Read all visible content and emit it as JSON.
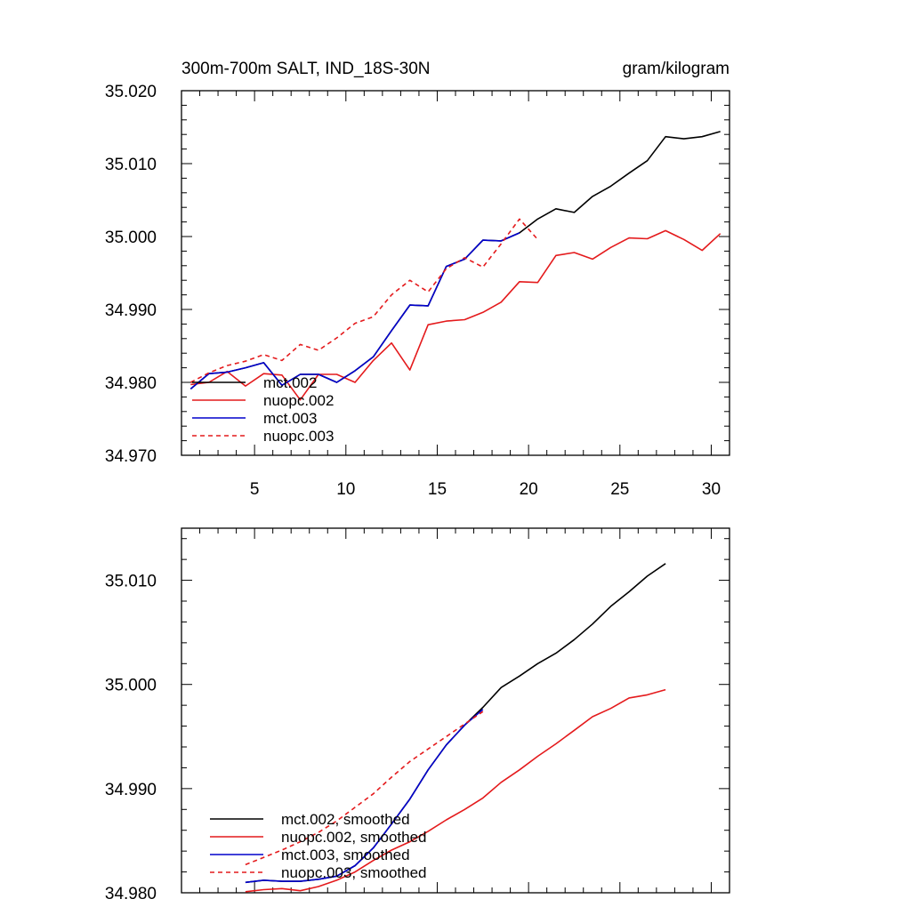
{
  "colors": {
    "mct002": "#000000",
    "nuopc002": "#e41a1c",
    "mct003": "#0000cc",
    "nuopc003": "#e41a1c"
  },
  "chart_data": [
    {
      "type": "line",
      "title": "300m-700m SALT, IND_18S-30N",
      "units": "gram/kilogram",
      "xlim": [
        1,
        31
      ],
      "ylim": [
        34.97,
        35.02
      ],
      "xticks": [
        5,
        10,
        15,
        20,
        25,
        30
      ],
      "xtick_labels": [
        "5",
        "10",
        "15",
        "20",
        "25",
        "30"
      ],
      "yticks": [
        34.97,
        34.98,
        34.99,
        35.0,
        35.01,
        35.02
      ],
      "ytick_labels": [
        "34.970",
        "34.980",
        "34.990",
        "35.000",
        "35.010",
        "35.020"
      ],
      "legend_position": "bottom-left",
      "series": [
        {
          "name": "mct.002",
          "color": "#000000",
          "dash": "solid",
          "x": [
            1.5,
            2.5,
            3.5,
            4.5,
            5.5,
            6.5,
            7.5,
            8.5,
            9.5,
            10.5,
            11.5,
            12.5,
            13.5,
            14.5,
            15.5,
            16.5,
            17.5,
            18.5,
            19.5,
            20.5,
            21.5,
            22.5,
            23.5,
            24.5,
            25.5,
            26.5,
            27.5,
            28.5,
            29.5,
            30.5
          ],
          "values": [
            34.9791,
            34.9812,
            34.9814,
            34.982,
            34.9827,
            34.9796,
            34.9811,
            34.9811,
            34.98,
            34.9816,
            34.9835,
            34.9871,
            34.9906,
            34.9905,
            34.9959,
            34.9969,
            34.9995,
            34.9994,
            35.0005,
            35.0024,
            35.0038,
            35.0033,
            35.0055,
            35.0069,
            35.0087,
            35.0104,
            35.0137,
            35.0134,
            35.0137,
            35.0144
          ]
        },
        {
          "name": "nuopc.002",
          "color": "#e41a1c",
          "dash": "solid",
          "x": [
            1.5,
            2.5,
            3.5,
            4.5,
            5.5,
            6.5,
            7.5,
            8.5,
            9.5,
            10.5,
            11.5,
            12.5,
            13.5,
            14.5,
            15.5,
            16.5,
            17.5,
            18.5,
            19.5,
            20.5,
            21.5,
            22.5,
            23.5,
            24.5,
            25.5,
            26.5,
            27.5,
            28.5,
            29.5,
            30.5
          ],
          "values": [
            34.9797,
            34.98,
            34.9815,
            34.9795,
            34.9812,
            34.981,
            34.9776,
            34.9811,
            34.9811,
            34.98,
            34.983,
            34.9854,
            34.9817,
            34.9879,
            34.9884,
            34.9886,
            34.9896,
            34.991,
            34.9938,
            34.9937,
            34.9974,
            34.9978,
            34.9969,
            34.9985,
            34.9998,
            34.9997,
            35.0008,
            34.9996,
            34.9981,
            35.0004
          ]
        },
        {
          "name": "mct.003",
          "color": "#0000cc",
          "dash": "solid",
          "x": [
            1.5,
            2.5,
            3.5,
            4.5,
            5.5,
            6.5,
            7.5,
            8.5,
            9.5,
            10.5,
            11.5,
            12.5,
            13.5,
            14.5,
            15.5,
            16.5,
            17.5,
            18.5,
            19.5
          ],
          "values": [
            34.9791,
            34.9812,
            34.9814,
            34.982,
            34.9827,
            34.9796,
            34.9811,
            34.9811,
            34.98,
            34.9816,
            34.9835,
            34.9871,
            34.9906,
            34.9905,
            34.9959,
            34.9969,
            34.9995,
            34.9994,
            35.0005
          ]
        },
        {
          "name": "nuopc.003",
          "color": "#e41a1c",
          "dash": "dashed",
          "x": [
            1.5,
            2.5,
            3.5,
            4.5,
            5.5,
            6.5,
            7.5,
            8.5,
            9.5,
            10.5,
            11.5,
            12.5,
            13.5,
            14.5,
            15.5,
            16.5,
            17.5,
            18.5,
            19.5,
            20.5
          ],
          "values": [
            34.98,
            34.9813,
            34.9823,
            34.9829,
            34.9838,
            34.983,
            34.9852,
            34.9844,
            34.9861,
            34.9881,
            34.989,
            34.992,
            34.994,
            34.9924,
            34.9956,
            34.9971,
            34.9958,
            34.999,
            35.0024,
            34.9996
          ]
        }
      ]
    },
    {
      "type": "line",
      "xlim": [
        1,
        31
      ],
      "ylim": [
        34.98,
        35.015
      ],
      "yticks": [
        34.98,
        34.99,
        35.0,
        35.01
      ],
      "ytick_labels": [
        "34.980",
        "34.990",
        "35.000",
        "35.010"
      ],
      "legend_position": "bottom-left",
      "series": [
        {
          "name": "mct.002, smoothed",
          "color": "#000000",
          "dash": "solid",
          "x": [
            4.5,
            5.5,
            6.5,
            7.5,
            8.5,
            9.5,
            10.5,
            11.5,
            12.5,
            13.5,
            14.5,
            15.5,
            16.5,
            17.5,
            18.5,
            19.5,
            20.5,
            21.5,
            22.5,
            23.5,
            24.5,
            25.5,
            26.5,
            27.5
          ],
          "values": [
            34.981,
            34.9812,
            34.9811,
            34.9811,
            34.9813,
            34.9816,
            34.9826,
            34.9843,
            34.9866,
            34.989,
            34.9918,
            34.9942,
            34.9961,
            34.9978,
            34.9997,
            35.0008,
            35.002,
            35.003,
            35.0043,
            35.0058,
            35.0075,
            35.0089,
            35.0104,
            35.0116
          ]
        },
        {
          "name": "nuopc.002, smoothed",
          "color": "#e41a1c",
          "dash": "solid",
          "x": [
            4.5,
            5.5,
            6.5,
            7.5,
            8.5,
            9.5,
            10.5,
            11.5,
            12.5,
            13.5,
            14.5,
            15.5,
            16.5,
            17.5,
            18.5,
            19.5,
            20.5,
            21.5,
            22.5,
            23.5,
            24.5,
            25.5,
            26.5,
            27.5
          ],
          "values": [
            34.9801,
            34.9803,
            34.9804,
            34.9802,
            34.9806,
            34.9812,
            34.982,
            34.9831,
            34.9841,
            34.9849,
            34.9859,
            34.987,
            34.988,
            34.9891,
            34.9906,
            34.9918,
            34.9931,
            34.9943,
            34.9956,
            34.9969,
            34.9977,
            34.9987,
            34.999,
            34.9995
          ]
        },
        {
          "name": "mct.003, smoothed",
          "color": "#0000cc",
          "dash": "solid",
          "x": [
            4.5,
            5.5,
            6.5,
            7.5,
            8.5,
            9.5,
            10.5,
            11.5,
            12.5,
            13.5,
            14.5,
            15.5,
            16.5,
            17.5
          ],
          "values": [
            34.981,
            34.9812,
            34.9811,
            34.9811,
            34.9813,
            34.9816,
            34.9826,
            34.9843,
            34.9866,
            34.989,
            34.9918,
            34.9942,
            34.9961,
            34.9976
          ]
        },
        {
          "name": "nuopc.003, smoothed",
          "color": "#e41a1c",
          "dash": "dashed",
          "x": [
            4.5,
            5.5,
            6.5,
            7.5,
            8.5,
            9.5,
            10.5,
            11.5,
            12.5,
            13.5,
            14.5,
            15.5,
            16.5,
            17.5
          ],
          "values": [
            34.9827,
            34.9834,
            34.9841,
            34.9849,
            34.9858,
            34.9869,
            34.9882,
            34.9895,
            34.9911,
            34.9926,
            34.9938,
            34.995,
            34.9962,
            34.9974
          ]
        }
      ]
    }
  ]
}
